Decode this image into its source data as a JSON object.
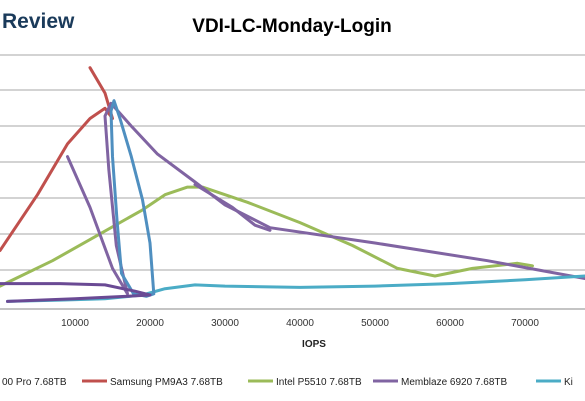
{
  "brand": {
    "text": "Review",
    "color": "#1a3a5a"
  },
  "chart_data": {
    "type": "line",
    "title": "VDI-LC-Monday-Login",
    "xlabel": "IOPS",
    "ylabel": "",
    "xlim": [
      0,
      78000
    ],
    "ylim": [
      0,
      10
    ],
    "x_ticks": [
      {
        "value": 10000,
        "label": "10000"
      },
      {
        "value": 20000,
        "label": "20000"
      },
      {
        "value": 30000,
        "label": "30000"
      },
      {
        "value": 40000,
        "label": "40000"
      },
      {
        "value": 50000,
        "label": "50000"
      },
      {
        "value": 60000,
        "label": "60000"
      },
      {
        "value": 70000,
        "label": "70000"
      }
    ],
    "grid": true,
    "legend_position": "bottom",
    "series": [
      {
        "name": "00 Pro 7.68TB",
        "color": "#4472c4",
        "points": []
      },
      {
        "name": "Samsung PM9A3 7.68TB",
        "color": "#c0504d",
        "points": [
          [
            0,
            2.3
          ],
          [
            5000,
            4.5
          ],
          [
            9000,
            6.5
          ],
          [
            12000,
            7.5
          ],
          [
            14000,
            7.9
          ],
          [
            15000,
            7.5
          ],
          [
            14000,
            8.5
          ],
          [
            12000,
            9.5
          ]
        ]
      },
      {
        "name": "Intel P5510 7.68TB",
        "color": "#9bbb59",
        "points": [
          [
            0,
            0.9
          ],
          [
            7000,
            1.9
          ],
          [
            13000,
            2.9
          ],
          [
            19000,
            3.9
          ],
          [
            22000,
            4.5
          ],
          [
            25000,
            4.8
          ],
          [
            27000,
            4.8
          ],
          [
            33000,
            4.2
          ],
          [
            40000,
            3.4
          ],
          [
            47000,
            2.5
          ],
          [
            53000,
            1.6
          ],
          [
            58000,
            1.3
          ],
          [
            63000,
            1.6
          ],
          [
            69000,
            1.8
          ],
          [
            71000,
            1.7
          ]
        ]
      },
      {
        "name": "Memblaze 6920 7.68TB",
        "color": "#8064a2",
        "points": [
          [
            9000,
            6.0
          ],
          [
            12000,
            4.0
          ],
          [
            15000,
            1.6
          ],
          [
            17000,
            0.6
          ],
          [
            15500,
            2.5
          ],
          [
            14500,
            5.5
          ],
          [
            14000,
            7.6
          ],
          [
            14800,
            8.1
          ],
          [
            17500,
            7.2
          ],
          [
            21000,
            6.1
          ],
          [
            26000,
            5.0
          ],
          [
            30000,
            4.1
          ],
          [
            36000,
            3.2
          ],
          [
            50000,
            2.6
          ],
          [
            65000,
            1.9
          ],
          [
            78000,
            1.2
          ]
        ]
      },
      {
        "name": "Ki",
        "color": "#4bacc6",
        "points": [
          [
            1000,
            0.3
          ],
          [
            8000,
            0.35
          ],
          [
            14000,
            0.4
          ],
          [
            19000,
            0.55
          ],
          [
            22000,
            0.8
          ],
          [
            26000,
            0.95
          ],
          [
            30000,
            0.9
          ],
          [
            40000,
            0.85
          ],
          [
            50000,
            0.9
          ],
          [
            60000,
            1.0
          ],
          [
            70000,
            1.15
          ],
          [
            78000,
            1.3
          ]
        ]
      },
      {
        "name": "",
        "color": "#4f8fc0",
        "points": [
          [
            20500,
            0.6
          ],
          [
            20000,
            2.6
          ],
          [
            19000,
            4.3
          ],
          [
            17500,
            6.0
          ],
          [
            16000,
            7.5
          ],
          [
            15200,
            8.2
          ],
          [
            14800,
            7.8
          ],
          [
            15000,
            6.0
          ],
          [
            15600,
            3.5
          ],
          [
            16200,
            1.4
          ],
          [
            17800,
            0.6
          ],
          [
            19500,
            0.5
          ],
          [
            20500,
            0.6
          ]
        ]
      },
      {
        "name": "",
        "color": "#8064a2",
        "points": [
          [
            26000,
            4.9
          ],
          [
            31000,
            4.0
          ],
          [
            34000,
            3.3
          ],
          [
            36000,
            3.1
          ]
        ]
      },
      {
        "name": "",
        "color": "#6a4a94",
        "points": [
          [
            0,
            1.0
          ],
          [
            8000,
            1.0
          ],
          [
            14000,
            0.95
          ],
          [
            18000,
            0.7
          ],
          [
            20000,
            0.55
          ],
          [
            17000,
            0.5
          ],
          [
            10000,
            0.4
          ],
          [
            1000,
            0.3
          ]
        ]
      }
    ]
  }
}
